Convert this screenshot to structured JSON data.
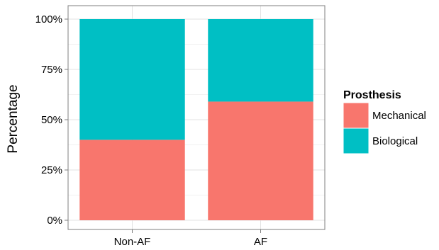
{
  "chart_data": {
    "type": "bar",
    "stacked": true,
    "categories": [
      "Non-AF",
      "AF"
    ],
    "series": [
      {
        "name": "Mechanical",
        "color": "#F8766D",
        "values": [
          0.4,
          0.59
        ]
      },
      {
        "name": "Biological",
        "color": "#00BFC4",
        "values": [
          0.6,
          0.41
        ]
      }
    ],
    "ylabel": "Percentage",
    "xlabel": "",
    "ylim": [
      0,
      1
    ],
    "yticks": [
      0,
      0.25,
      0.5,
      0.75,
      1
    ],
    "ytick_labels": [
      "0%",
      "25%",
      "50%",
      "75%",
      "100%"
    ],
    "grid": true,
    "legend": {
      "title": "Prosthesis",
      "position": "right"
    }
  }
}
